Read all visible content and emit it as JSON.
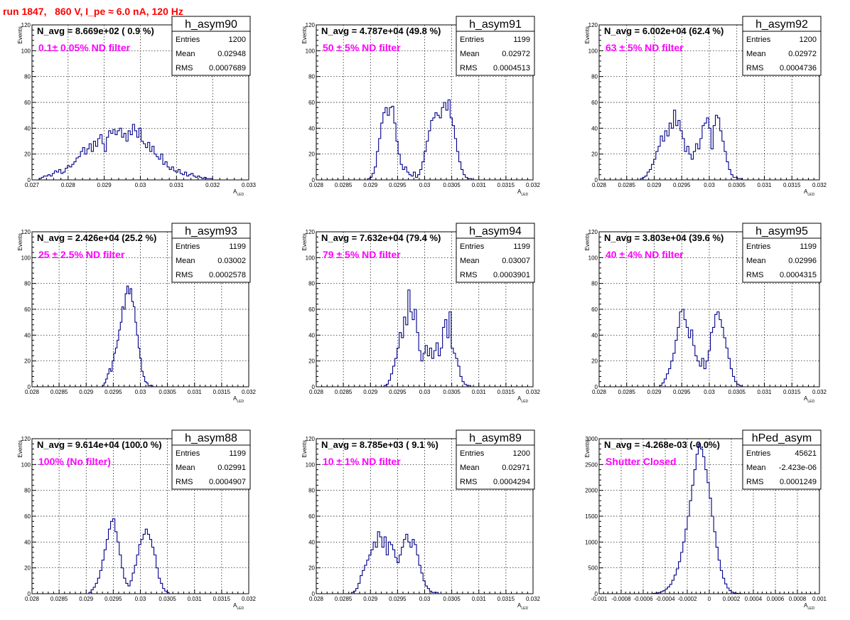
{
  "figure_title": "run 1847,   860 V, I_pe ≈ 6.0 nA, 120 Hz",
  "axis_label_x_main": "A",
  "axis_label_x_sub": "LED",
  "axis_label_y": "Events",
  "stats_labels": {
    "entries": "Entries",
    "mean": "Mean",
    "rms": "RMS"
  },
  "colors": {
    "histogram": "#00008b",
    "filter_text": "#ff00ff",
    "title": "#ff0000"
  },
  "chart_data": [
    {
      "type": "bar",
      "name": "h_asym90",
      "navg": "N_avg = 8.669e+02 ( 0.9 %)",
      "filter_label": "0.1± 0.05% ND filter",
      "stats": {
        "entries": "1200",
        "mean": "0.02948",
        "rms": "0.0007689"
      },
      "xlim": [
        0.027,
        0.033
      ],
      "ylim": [
        0,
        120
      ],
      "xticks": [
        "0.027",
        "0.028",
        "0.029",
        "0.03",
        "0.031",
        "0.032",
        "0.033"
      ],
      "xtick_values": [
        0.027,
        0.028,
        0.029,
        0.03,
        0.031,
        0.032,
        0.033
      ],
      "yticks": [
        0,
        20,
        40,
        60,
        80,
        100,
        120
      ],
      "bins": {
        "start": 0.0272,
        "width": 6e-05,
        "values": [
          1,
          2,
          3,
          3,
          4,
          3,
          5,
          7,
          6,
          8,
          5,
          6,
          9,
          11,
          10,
          12,
          14,
          17,
          18,
          22,
          25,
          20,
          24,
          28,
          22,
          30,
          26,
          32,
          35,
          28,
          22,
          33,
          38,
          36,
          39,
          35,
          38,
          40,
          33,
          36,
          30,
          38,
          35,
          43,
          38,
          33,
          40,
          30,
          28,
          25,
          29,
          22,
          26,
          20,
          18,
          16,
          20,
          12,
          14,
          10,
          8,
          10,
          7,
          6,
          8,
          5,
          4,
          6,
          3,
          4,
          5,
          3,
          2,
          3,
          2,
          1,
          2,
          1,
          1,
          1,
          0,
          0,
          0
        ]
      }
    },
    {
      "type": "bar",
      "name": "h_asym91",
      "navg": "N_avg = 4.787e+04 (49.8 %)",
      "filter_label": " 50 ± 5% ND filter",
      "stats": {
        "entries": "1199",
        "mean": "0.02972",
        "rms": "0.0004513"
      },
      "xlim": [
        0.028,
        0.032
      ],
      "ylim": [
        0,
        120
      ],
      "xticks": [
        "0.028",
        "0.0285",
        "0.029",
        "0.0295",
        "0.03",
        "0.0305",
        "0.031",
        "0.0315",
        "0.032"
      ],
      "xtick_values": [
        0.028,
        0.0285,
        0.029,
        0.0295,
        0.03,
        0.0305,
        0.031,
        0.0315,
        0.032
      ],
      "yticks": [
        0,
        20,
        40,
        60,
        80,
        100,
        120
      ],
      "bins": {
        "start": 0.02895,
        "width": 4e-05,
        "values": [
          1,
          2,
          5,
          10,
          22,
          32,
          44,
          52,
          56,
          50,
          56,
          57,
          44,
          30,
          20,
          12,
          8,
          10,
          6,
          4,
          3,
          6,
          2,
          4,
          8,
          14,
          22,
          30,
          38,
          46,
          48,
          52,
          50,
          48,
          56,
          60,
          54,
          62,
          48,
          42,
          32,
          22,
          14,
          8,
          4,
          2,
          1,
          1
        ]
      }
    },
    {
      "type": "bar",
      "name": "h_asym92",
      "navg": "N_avg = 6.002e+04 (62.4 %)",
      "filter_label": " 63 ± 5% ND filter",
      "stats": {
        "entries": "1200",
        "mean": "0.02972",
        "rms": "0.0004736"
      },
      "xlim": [
        0.028,
        0.032
      ],
      "ylim": [
        0,
        120
      ],
      "xticks": [
        "0.028",
        "0.0285",
        "0.029",
        "0.0295",
        "0.03",
        "0.0305",
        "0.031",
        "0.0315",
        "0.032"
      ],
      "xtick_values": [
        0.028,
        0.0285,
        0.029,
        0.0295,
        0.03,
        0.0305,
        0.031,
        0.0315,
        0.032
      ],
      "yticks": [
        0,
        20,
        40,
        60,
        80,
        100,
        120
      ],
      "bins": {
        "start": 0.02875,
        "width": 4e-05,
        "values": [
          1,
          2,
          3,
          6,
          8,
          12,
          16,
          22,
          26,
          34,
          30,
          38,
          34,
          44,
          40,
          54,
          42,
          46,
          38,
          32,
          22,
          26,
          20,
          16,
          22,
          28,
          24,
          32,
          42,
          44,
          48,
          40,
          24,
          42,
          50,
          48,
          38,
          30,
          22,
          14,
          8,
          4,
          2,
          2,
          1,
          1
        ]
      }
    },
    {
      "type": "bar",
      "name": "h_asym93",
      "navg": "N_avg = 2.426e+04 (25.2 %)",
      "filter_label": " 25 ± 2.5% ND filter",
      "stats": {
        "entries": "1199",
        "mean": "0.03002",
        "rms": "0.0002578"
      },
      "xlim": [
        0.028,
        0.032
      ],
      "ylim": [
        0,
        120
      ],
      "xticks": [
        "0.028",
        "0.0285",
        "0.029",
        "0.0295",
        "0.03",
        "0.0305",
        "0.031",
        "0.0315",
        "0.032"
      ],
      "xtick_values": [
        0.028,
        0.0285,
        0.029,
        0.0295,
        0.03,
        0.0305,
        0.031,
        0.0315,
        0.032
      ],
      "yticks": [
        0,
        20,
        40,
        60,
        80,
        100,
        120
      ],
      "bins": {
        "start": 0.0293,
        "width": 3e-05,
        "values": [
          1,
          3,
          6,
          10,
          14,
          12,
          20,
          26,
          30,
          36,
          44,
          50,
          62,
          60,
          72,
          78,
          72,
          76,
          66,
          62,
          50,
          40,
          30,
          22,
          12,
          8,
          4,
          3,
          1,
          1,
          1
        ]
      }
    },
    {
      "type": "bar",
      "name": "h_asym94",
      "navg": "N_avg = 7.632e+04 (79.4 %)",
      "filter_label": " 79 ± 5% ND filter",
      "stats": {
        "entries": "1199",
        "mean": "0.03007",
        "rms": "0.0003901"
      },
      "xlim": [
        0.028,
        0.032
      ],
      "ylim": [
        0,
        120
      ],
      "xticks": [
        "0.028",
        "0.0285",
        "0.029",
        "0.0295",
        "0.03",
        "0.0305",
        "0.031",
        "0.0315",
        "0.032"
      ],
      "xtick_values": [
        0.028,
        0.0285,
        0.029,
        0.0295,
        0.03,
        0.0305,
        0.031,
        0.0315,
        0.032
      ],
      "yticks": [
        0,
        20,
        40,
        60,
        80,
        100,
        120
      ],
      "bins": {
        "start": 0.02925,
        "width": 4e-05,
        "values": [
          1,
          2,
          5,
          10,
          16,
          22,
          30,
          42,
          38,
          54,
          48,
          75,
          58,
          52,
          60,
          42,
          28,
          20,
          26,
          32,
          24,
          30,
          22,
          28,
          34,
          24,
          30,
          46,
          52,
          38,
          58,
          30,
          26,
          22,
          16,
          8,
          4,
          2,
          1,
          1
        ]
      }
    },
    {
      "type": "bar",
      "name": "h_asym95",
      "navg": "N_avg = 3.803e+04 (39.6 %)",
      "filter_label": " 40 ± 4% ND filter",
      "stats": {
        "entries": "1199",
        "mean": "0.02996",
        "rms": "0.0004315"
      },
      "xlim": [
        0.028,
        0.032
      ],
      "ylim": [
        0,
        120
      ],
      "xticks": [
        "0.028",
        "0.0285",
        "0.029",
        "0.0295",
        "0.03",
        "0.0305",
        "0.031",
        "0.0315",
        "0.032"
      ],
      "xtick_values": [
        0.028,
        0.0285,
        0.029,
        0.0295,
        0.03,
        0.0305,
        0.031,
        0.0315,
        0.032
      ],
      "yticks": [
        0,
        20,
        40,
        60,
        80,
        100,
        120
      ],
      "bins": {
        "start": 0.0291,
        "width": 4e-05,
        "values": [
          1,
          3,
          6,
          10,
          14,
          20,
          26,
          36,
          46,
          58,
          60,
          52,
          46,
          38,
          44,
          32,
          24,
          20,
          16,
          22,
          14,
          20,
          28,
          42,
          46,
          56,
          58,
          52,
          46,
          38,
          30,
          22,
          14,
          8,
          4,
          2,
          1
        ]
      }
    },
    {
      "type": "bar",
      "name": "h_asym88",
      "navg": "N_avg = 9.614e+04 (100.0 %)",
      "filter_label": " 100% (No filter)",
      "stats": {
        "entries": "1199",
        "mean": "0.02991",
        "rms": "0.0004907"
      },
      "xlim": [
        0.028,
        0.032
      ],
      "ylim": [
        0,
        120
      ],
      "xticks": [
        "0.028",
        "0.0285",
        "0.029",
        "0.0295",
        "0.03",
        "0.0305",
        "0.031",
        "0.0315",
        "0.032"
      ],
      "xtick_values": [
        0.028,
        0.0285,
        0.029,
        0.0295,
        0.03,
        0.0305,
        0.031,
        0.0315,
        0.032
      ],
      "yticks": [
        0,
        20,
        40,
        60,
        80,
        100,
        120
      ],
      "bins": {
        "start": 0.02905,
        "width": 4e-05,
        "values": [
          1,
          3,
          5,
          8,
          12,
          18,
          26,
          34,
          42,
          50,
          56,
          58,
          48,
          40,
          30,
          20,
          12,
          8,
          6,
          10,
          16,
          22,
          30,
          38,
          42,
          46,
          50,
          46,
          42,
          36,
          30,
          20,
          12,
          8,
          4,
          2,
          1
        ]
      }
    },
    {
      "type": "bar",
      "name": "h_asym89",
      "navg": "N_avg = 8.785e+03 ( 9.1 %)",
      "filter_label": " 10 ± 1% ND filter",
      "stats": {
        "entries": "1200",
        "mean": "0.02971",
        "rms": "0.0004294"
      },
      "xlim": [
        0.028,
        0.032
      ],
      "ylim": [
        0,
        120
      ],
      "xticks": [
        "0.028",
        "0.0285",
        "0.029",
        "0.0295",
        "0.03",
        "0.0305",
        "0.031",
        "0.0315",
        "0.032"
      ],
      "xtick_values": [
        0.028,
        0.0285,
        0.029,
        0.0295,
        0.03,
        0.0305,
        0.031,
        0.0315,
        0.032
      ],
      "yticks": [
        0,
        20,
        40,
        60,
        80,
        100,
        120
      ],
      "bins": {
        "start": 0.02865,
        "width": 4e-05,
        "values": [
          1,
          2,
          4,
          8,
          14,
          18,
          22,
          26,
          30,
          34,
          40,
          36,
          48,
          44,
          36,
          44,
          30,
          40,
          38,
          34,
          28,
          24,
          30,
          36,
          42,
          46,
          40,
          36,
          42,
          38,
          30,
          22,
          16,
          10,
          6,
          4,
          2,
          1,
          1,
          1
        ]
      }
    },
    {
      "type": "bar",
      "name": "hPed_asym",
      "navg": "N_avg = -4.268e-03 (-0.0%)",
      "filter_label": "Shutter Closed",
      "stats": {
        "entries": "45621",
        "mean": "-2.423e-06",
        "rms": "0.0001249"
      },
      "xlim": [
        -0.001,
        0.001
      ],
      "ylim": [
        0,
        3000
      ],
      "xticks": [
        "-0.001",
        "-0.0008",
        "-0.0006",
        "-0.0004",
        "-0.0002",
        "0",
        "0.0002",
        "0.0004",
        "0.0006",
        "0.0008",
        "0.001"
      ],
      "xtick_values": [
        -0.001,
        -0.0008,
        -0.0006,
        -0.0004,
        -0.0002,
        0,
        0.0002,
        0.0004,
        0.0006,
        0.0008,
        0.001
      ],
      "yticks": [
        0,
        500,
        1000,
        1500,
        2000,
        2500,
        3000
      ],
      "bins": {
        "start": -0.00052,
        "width": 2e-05,
        "values": [
          5,
          10,
          15,
          25,
          40,
          60,
          90,
          130,
          180,
          260,
          360,
          480,
          620,
          800,
          1000,
          1250,
          1500,
          1800,
          2100,
          2400,
          2700,
          2900,
          2800,
          2650,
          2400,
          2150,
          1850,
          1500,
          1200,
          900,
          650,
          450,
          300,
          190,
          110,
          60,
          30,
          15,
          8,
          4,
          2
        ]
      }
    }
  ]
}
